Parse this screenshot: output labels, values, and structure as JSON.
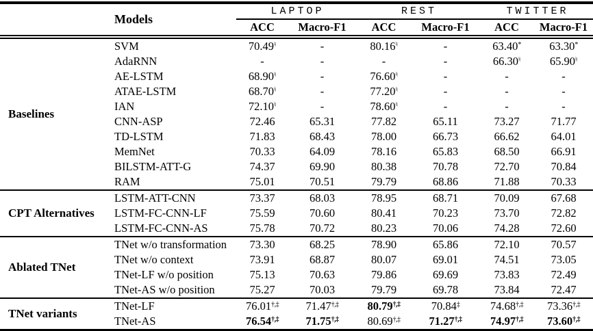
{
  "table": {
    "models_header": "Models",
    "datasets": [
      {
        "name": "LAPTOP",
        "metrics": [
          "ACC",
          "Macro-F1"
        ]
      },
      {
        "name": "REST",
        "metrics": [
          "ACC",
          "Macro-F1"
        ]
      },
      {
        "name": "TWITTER",
        "metrics": [
          "ACC",
          "Macro-F1"
        ]
      }
    ],
    "footnote_marks": {
      "natural": "♮",
      "star": "*",
      "dagger_ddagger": "†,‡",
      "ddagger": "‡"
    },
    "colors": {
      "text": "#000000",
      "background": "#ffffff",
      "rules": "#000000"
    },
    "sections": [
      {
        "label": "Baselines",
        "rows": [
          {
            "model": "SVM",
            "cells": [
              {
                "v": "70.49",
                "sup": "♮"
              },
              {
                "v": "-"
              },
              {
                "v": "80.16",
                "sup": "♮"
              },
              {
                "v": "-"
              },
              {
                "v": "63.40",
                "sup": "*"
              },
              {
                "v": "63.30",
                "sup": "*"
              }
            ]
          },
          {
            "model": "AdaRNN",
            "cells": [
              {
                "v": "-"
              },
              {
                "v": "-"
              },
              {
                "v": "-"
              },
              {
                "v": "-"
              },
              {
                "v": "66.30",
                "sup": "♮"
              },
              {
                "v": "65.90",
                "sup": "♮"
              }
            ]
          },
          {
            "model": "AE-LSTM",
            "cells": [
              {
                "v": "68.90",
                "sup": "♮"
              },
              {
                "v": "-"
              },
              {
                "v": "76.60",
                "sup": "♮"
              },
              {
                "v": "-"
              },
              {
                "v": "-"
              },
              {
                "v": "-"
              }
            ]
          },
          {
            "model": "ATAE-LSTM",
            "cells": [
              {
                "v": "68.70",
                "sup": "♮"
              },
              {
                "v": "-"
              },
              {
                "v": "77.20",
                "sup": "♮"
              },
              {
                "v": "-"
              },
              {
                "v": "-"
              },
              {
                "v": "-"
              }
            ]
          },
          {
            "model": "IAN",
            "cells": [
              {
                "v": "72.10",
                "sup": "♮"
              },
              {
                "v": "-"
              },
              {
                "v": "78.60",
                "sup": "♮"
              },
              {
                "v": "-"
              },
              {
                "v": "-"
              },
              {
                "v": "-"
              }
            ]
          },
          {
            "model": "CNN-ASP",
            "cells": [
              {
                "v": "72.46"
              },
              {
                "v": "65.31"
              },
              {
                "v": "77.82"
              },
              {
                "v": "65.11"
              },
              {
                "v": "73.27"
              },
              {
                "v": "71.77"
              }
            ]
          },
          {
            "model": "TD-LSTM",
            "cells": [
              {
                "v": "71.83"
              },
              {
                "v": "68.43"
              },
              {
                "v": "78.00"
              },
              {
                "v": "66.73"
              },
              {
                "v": "66.62"
              },
              {
                "v": "64.01"
              }
            ]
          },
          {
            "model": "MemNet",
            "cells": [
              {
                "v": "70.33"
              },
              {
                "v": "64.09"
              },
              {
                "v": "78.16"
              },
              {
                "v": "65.83"
              },
              {
                "v": "68.50"
              },
              {
                "v": "66.91"
              }
            ]
          },
          {
            "model": "BILSTM-ATT-G",
            "cells": [
              {
                "v": "74.37"
              },
              {
                "v": "69.90"
              },
              {
                "v": "80.38"
              },
              {
                "v": "70.78"
              },
              {
                "v": "72.70"
              },
              {
                "v": "70.84"
              }
            ]
          },
          {
            "model": "RAM",
            "cells": [
              {
                "v": "75.01"
              },
              {
                "v": "70.51"
              },
              {
                "v": "79.79"
              },
              {
                "v": "68.86"
              },
              {
                "v": "71.88"
              },
              {
                "v": "70.33"
              }
            ]
          }
        ]
      },
      {
        "label": "CPT Alternatives",
        "rows": [
          {
            "model": "LSTM-ATT-CNN",
            "cells": [
              {
                "v": "73.37"
              },
              {
                "v": "68.03"
              },
              {
                "v": "78.95"
              },
              {
                "v": "68.71"
              },
              {
                "v": "70.09"
              },
              {
                "v": "67.68"
              }
            ]
          },
          {
            "model": "LSTM-FC-CNN-LF",
            "cells": [
              {
                "v": "75.59"
              },
              {
                "v": "70.60"
              },
              {
                "v": "80.41"
              },
              {
                "v": "70.23"
              },
              {
                "v": "73.70"
              },
              {
                "v": "72.82"
              }
            ]
          },
          {
            "model": "LSTM-FC-CNN-AS",
            "cells": [
              {
                "v": "75.78"
              },
              {
                "v": "70.72"
              },
              {
                "v": "80.23"
              },
              {
                "v": "70.06"
              },
              {
                "v": "74.28"
              },
              {
                "v": "72.60"
              }
            ]
          }
        ]
      },
      {
        "label": "Ablated TNet",
        "rows": [
          {
            "model": "TNet w/o transformation",
            "cells": [
              {
                "v": "73.30"
              },
              {
                "v": "68.25"
              },
              {
                "v": "78.90"
              },
              {
                "v": "65.86"
              },
              {
                "v": "72.10"
              },
              {
                "v": "70.57"
              }
            ]
          },
          {
            "model": "TNet w/o context",
            "cells": [
              {
                "v": "73.91"
              },
              {
                "v": "68.87"
              },
              {
                "v": "80.07"
              },
              {
                "v": "69.01"
              },
              {
                "v": "74.51"
              },
              {
                "v": "73.05"
              }
            ]
          },
          {
            "model": "TNet-LF w/o position",
            "cells": [
              {
                "v": "75.13"
              },
              {
                "v": "70.63"
              },
              {
                "v": "79.86"
              },
              {
                "v": "69.69"
              },
              {
                "v": "73.83"
              },
              {
                "v": "72.49"
              }
            ]
          },
          {
            "model": "TNet-AS w/o position",
            "cells": [
              {
                "v": "75.27"
              },
              {
                "v": "70.03"
              },
              {
                "v": "79.79"
              },
              {
                "v": "69.78"
              },
              {
                "v": "73.84"
              },
              {
                "v": "72.47"
              }
            ]
          }
        ]
      },
      {
        "label": "TNet variants",
        "rows": [
          {
            "model": "TNet-LF",
            "cells": [
              {
                "v": "76.01",
                "sup": "†,‡"
              },
              {
                "v": "71.47",
                "sup": "†,‡"
              },
              {
                "v": "80.79",
                "sup": "†,‡",
                "bold": true
              },
              {
                "v": "70.84",
                "sup": "‡"
              },
              {
                "v": "74.68",
                "sup": "†,‡"
              },
              {
                "v": "73.36",
                "sup": "†,‡"
              }
            ]
          },
          {
            "model": "TNet-AS",
            "cells": [
              {
                "v": "76.54",
                "sup": "†,‡",
                "bold": true
              },
              {
                "v": "71.75",
                "sup": "†,‡",
                "bold": true
              },
              {
                "v": "80.69",
                "sup": "†,‡"
              },
              {
                "v": "71.27",
                "sup": "†,‡",
                "bold": true
              },
              {
                "v": "74.97",
                "sup": "†,‡",
                "bold": true
              },
              {
                "v": "73.60",
                "sup": "†,‡",
                "bold": true
              }
            ]
          }
        ]
      }
    ]
  }
}
